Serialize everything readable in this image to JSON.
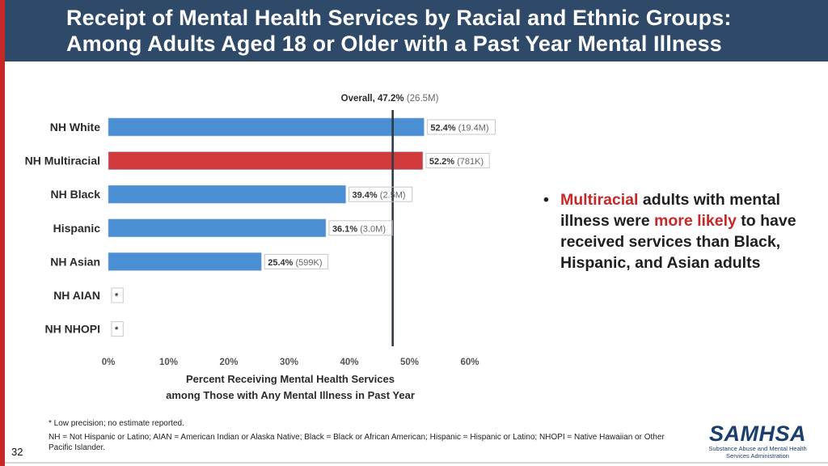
{
  "header": {
    "title_line1": "Receipt of Mental Health Services by Racial and Ethnic Groups:",
    "title_line2": "Among Adults Aged 18 or Older with a Past Year Mental Illness"
  },
  "colors": {
    "header_bg": "#2f4a68",
    "accent_left": "#c62828",
    "bar_default": "#4a8fd4",
    "bar_highlight": "#d23b3b"
  },
  "chart_data": {
    "type": "bar",
    "orientation": "horizontal",
    "categories": [
      "NH White",
      "NH Multiracial",
      "NH Black",
      "Hispanic",
      "NH Asian",
      "NH AIAN",
      "NH NHOPI"
    ],
    "values": [
      52.4,
      52.2,
      39.4,
      36.1,
      25.4,
      null,
      null
    ],
    "labels_pct": [
      "52.4%",
      "52.2%",
      "39.4%",
      "36.1%",
      "25.4%",
      "*",
      "*"
    ],
    "labels_count": [
      "(19.4M)",
      "(781K)",
      "(2.5M)",
      "(3.0M)",
      "(599K)",
      "",
      ""
    ],
    "highlight_index": 1,
    "reference_line": {
      "value": 47.2,
      "label_pct": "Overall, 47.2%",
      "label_count": "(26.5M)"
    },
    "xlim": [
      0,
      60
    ],
    "x_ticks": [
      0,
      10,
      20,
      30,
      40,
      50,
      60
    ],
    "x_tick_labels": [
      "0%",
      "10%",
      "20%",
      "30%",
      "40%",
      "50%",
      "60%"
    ],
    "xlabel_line1": "Percent Receiving Mental Health Services",
    "xlabel_line2": "among Those with Any Mental Illness in Past Year"
  },
  "bullet": {
    "part1": "Multiracial",
    "part2": " adults with mental illness were ",
    "part3": "more likely",
    "part4": " to have received services than Black, Hispanic, and Asian adults"
  },
  "footnotes": {
    "note1": "* Low precision; no estimate reported.",
    "note2": "NH = Not Hispanic or Latino; AIAN = American Indian or Alaska Native; Black = Black or African American; Hispanic = Hispanic or Latino; NHOPI = Native Hawaiian or Other Pacific Islander."
  },
  "page_number": "32",
  "logo": {
    "mark": "SAMHSA",
    "subtitle": "Substance Abuse and Mental Health Services Administration"
  }
}
